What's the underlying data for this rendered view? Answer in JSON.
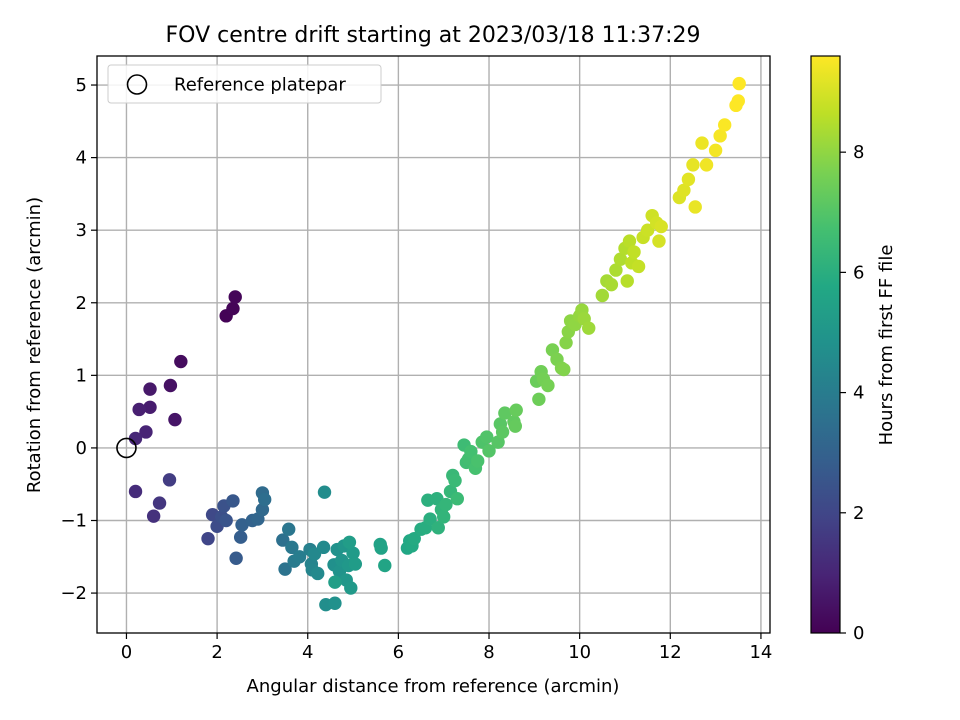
{
  "chart_data": {
    "type": "scatter",
    "title": "FOV centre drift starting at 2023/03/18 11:37:29",
    "xlabel": "Angular distance from reference (arcmin)",
    "ylabel": "Rotation from reference (arcmin)",
    "xlim": [
      -0.65,
      14.2
    ],
    "ylim": [
      -2.55,
      5.4
    ],
    "xticks": [
      0,
      2,
      4,
      6,
      8,
      10,
      12,
      14
    ],
    "xtick_labels": [
      "0",
      "2",
      "4",
      "6",
      "8",
      "10",
      "12",
      "14"
    ],
    "yticks": [
      -2,
      -1,
      0,
      1,
      2,
      3,
      4,
      5
    ],
    "ytick_labels": [
      "−2",
      "−1",
      "0",
      "1",
      "2",
      "3",
      "4",
      "5"
    ],
    "grid": true,
    "legend": {
      "placement": "top-left",
      "entries": [
        "Reference platepar"
      ]
    },
    "colorbar": {
      "label": "Hours from first FF file",
      "range": [
        0,
        9.6
      ],
      "ticks": [
        0,
        2,
        4,
        6,
        8
      ],
      "tick_labels": [
        "0",
        "2",
        "4",
        "6",
        "8"
      ],
      "colormap": "viridis"
    },
    "reference_point": {
      "x": 0,
      "y": 0
    },
    "series": [
      {
        "color_by": "hours",
        "points": [
          [
            2.2,
            1.82,
            0.05
          ],
          [
            2.35,
            1.92,
            0.1
          ],
          [
            2.4,
            2.08,
            0.15
          ],
          [
            1.2,
            1.19,
            0.3
          ],
          [
            0.97,
            0.86,
            0.45
          ],
          [
            1.07,
            0.39,
            0.55
          ],
          [
            0.52,
            0.81,
            0.65
          ],
          [
            0.52,
            0.56,
            0.75
          ],
          [
            0.28,
            0.53,
            0.85
          ],
          [
            0.43,
            0.22,
            0.95
          ],
          [
            0.2,
            0.13,
            1.05
          ],
          [
            0.2,
            -0.6,
            1.2
          ],
          [
            0.6,
            -0.94,
            1.35
          ],
          [
            0.73,
            -0.76,
            1.5
          ],
          [
            0.95,
            -0.44,
            1.7
          ],
          [
            1.8,
            -1.25,
            2.0
          ],
          [
            1.9,
            -0.92,
            2.1
          ],
          [
            2.0,
            -1.08,
            2.2
          ],
          [
            2.1,
            -0.95,
            2.3
          ],
          [
            2.15,
            -0.8,
            2.4
          ],
          [
            2.2,
            -1.0,
            2.5
          ],
          [
            2.35,
            -0.73,
            2.6
          ],
          [
            2.42,
            -1.52,
            2.75
          ],
          [
            2.52,
            -1.23,
            2.85
          ],
          [
            2.55,
            -1.06,
            2.95
          ],
          [
            2.78,
            -1.0,
            3.05
          ],
          [
            2.9,
            -0.98,
            3.15
          ],
          [
            3.0,
            -0.85,
            3.25
          ],
          [
            3.0,
            -0.62,
            3.35
          ],
          [
            3.05,
            -0.71,
            3.45
          ],
          [
            3.45,
            -1.27,
            3.55
          ],
          [
            3.5,
            -1.67,
            3.65
          ],
          [
            3.58,
            -1.12,
            3.75
          ],
          [
            3.65,
            -1.37,
            3.85
          ],
          [
            3.7,
            -1.56,
            3.95
          ],
          [
            3.82,
            -1.5,
            4.05
          ],
          [
            4.05,
            -1.4,
            4.15
          ],
          [
            4.08,
            -1.6,
            4.25
          ],
          [
            4.1,
            -1.68,
            4.35
          ],
          [
            4.15,
            -1.46,
            4.45
          ],
          [
            4.22,
            -1.73,
            4.5
          ],
          [
            4.35,
            -1.37,
            4.55
          ],
          [
            4.37,
            -0.61,
            4.65
          ],
          [
            4.4,
            -2.16,
            4.7
          ],
          [
            4.58,
            -1.61,
            4.75
          ],
          [
            4.6,
            -2.14,
            4.8
          ],
          [
            4.65,
            -1.4,
            4.85
          ],
          [
            4.7,
            -1.7,
            4.9
          ],
          [
            4.75,
            -1.55,
            4.95
          ],
          [
            4.8,
            -1.35,
            5.0
          ],
          [
            4.85,
            -1.82,
            5.05
          ],
          [
            4.9,
            -1.62,
            5.1
          ],
          [
            4.95,
            -1.93,
            5.15
          ],
          [
            5.0,
            -1.45,
            5.2
          ],
          [
            5.05,
            -1.6,
            5.25
          ],
          [
            4.92,
            -1.3,
            5.3
          ],
          [
            4.6,
            -1.85,
            5.35
          ],
          [
            5.6,
            -1.33,
            5.5
          ],
          [
            5.62,
            -1.38,
            5.55
          ],
          [
            5.7,
            -1.62,
            5.6
          ],
          [
            6.2,
            -1.38,
            5.7
          ],
          [
            6.25,
            -1.28,
            5.75
          ],
          [
            6.3,
            -1.35,
            5.8
          ],
          [
            6.35,
            -1.25,
            5.85
          ],
          [
            6.5,
            -1.12,
            5.9
          ],
          [
            6.6,
            -1.1,
            5.95
          ],
          [
            6.7,
            -0.98,
            6.0
          ],
          [
            6.65,
            -0.72,
            6.05
          ],
          [
            6.85,
            -0.7,
            6.1
          ],
          [
            6.88,
            -1.1,
            6.15
          ],
          [
            6.95,
            -0.85,
            6.2
          ],
          [
            7.0,
            -0.95,
            6.25
          ],
          [
            7.05,
            -0.78,
            6.3
          ],
          [
            7.15,
            -0.6,
            6.35
          ],
          [
            7.2,
            -0.38,
            6.4
          ],
          [
            7.25,
            -0.45,
            6.45
          ],
          [
            7.3,
            -0.7,
            6.5
          ],
          [
            7.45,
            0.04,
            6.55
          ],
          [
            7.5,
            -0.2,
            6.6
          ],
          [
            7.55,
            -0.15,
            6.65
          ],
          [
            7.6,
            -0.05,
            6.7
          ],
          [
            7.7,
            -0.28,
            6.75
          ],
          [
            7.75,
            -0.18,
            6.8
          ],
          [
            7.85,
            0.08,
            6.9
          ],
          [
            7.95,
            0.15,
            6.95
          ],
          [
            8.0,
            -0.04,
            7.0
          ],
          [
            8.2,
            0.08,
            7.05
          ],
          [
            8.25,
            0.33,
            7.1
          ],
          [
            8.3,
            0.22,
            7.15
          ],
          [
            8.35,
            0.48,
            7.2
          ],
          [
            8.55,
            0.36,
            7.25
          ],
          [
            8.58,
            0.3,
            7.3
          ],
          [
            8.6,
            0.52,
            7.35
          ],
          [
            9.05,
            0.92,
            7.4
          ],
          [
            9.1,
            0.67,
            7.45
          ],
          [
            9.15,
            1.05,
            7.5
          ],
          [
            9.2,
            0.95,
            7.55
          ],
          [
            9.3,
            0.86,
            7.6
          ],
          [
            9.4,
            1.35,
            7.65
          ],
          [
            9.5,
            1.22,
            7.7
          ],
          [
            9.6,
            1.1,
            7.75
          ],
          [
            9.65,
            1.08,
            7.8
          ],
          [
            9.7,
            1.45,
            7.85
          ],
          [
            9.75,
            1.6,
            7.9
          ],
          [
            9.8,
            1.75,
            7.95
          ],
          [
            9.9,
            1.7,
            8.0
          ],
          [
            10.0,
            1.82,
            8.05
          ],
          [
            10.05,
            1.9,
            8.1
          ],
          [
            10.1,
            1.78,
            8.15
          ],
          [
            10.2,
            1.65,
            8.2
          ],
          [
            10.5,
            2.1,
            8.25
          ],
          [
            10.6,
            2.3,
            8.3
          ],
          [
            10.7,
            2.25,
            8.35
          ],
          [
            10.8,
            2.45,
            8.4
          ],
          [
            10.9,
            2.6,
            8.45
          ],
          [
            11.0,
            2.75,
            8.5
          ],
          [
            11.05,
            2.3,
            8.55
          ],
          [
            11.1,
            2.85,
            8.6
          ],
          [
            11.15,
            2.55,
            8.65
          ],
          [
            11.2,
            2.7,
            8.7
          ],
          [
            11.3,
            2.5,
            8.75
          ],
          [
            11.4,
            2.9,
            8.8
          ],
          [
            11.5,
            3.0,
            8.85
          ],
          [
            11.6,
            3.2,
            8.9
          ],
          [
            11.7,
            3.1,
            8.95
          ],
          [
            11.75,
            2.85,
            9.0
          ],
          [
            11.8,
            3.05,
            9.05
          ],
          [
            12.2,
            3.45,
            9.1
          ],
          [
            12.3,
            3.55,
            9.15
          ],
          [
            12.4,
            3.7,
            9.2
          ],
          [
            12.5,
            3.9,
            9.25
          ],
          [
            12.55,
            3.32,
            9.3
          ],
          [
            12.7,
            4.2,
            9.35
          ],
          [
            12.8,
            3.9,
            9.4
          ],
          [
            13.0,
            4.1,
            9.45
          ],
          [
            13.1,
            4.3,
            9.5
          ],
          [
            13.2,
            4.45,
            9.55
          ],
          [
            13.45,
            4.72,
            9.6
          ],
          [
            13.5,
            4.78,
            9.6
          ],
          [
            13.52,
            5.02,
            9.6
          ]
        ]
      }
    ]
  }
}
